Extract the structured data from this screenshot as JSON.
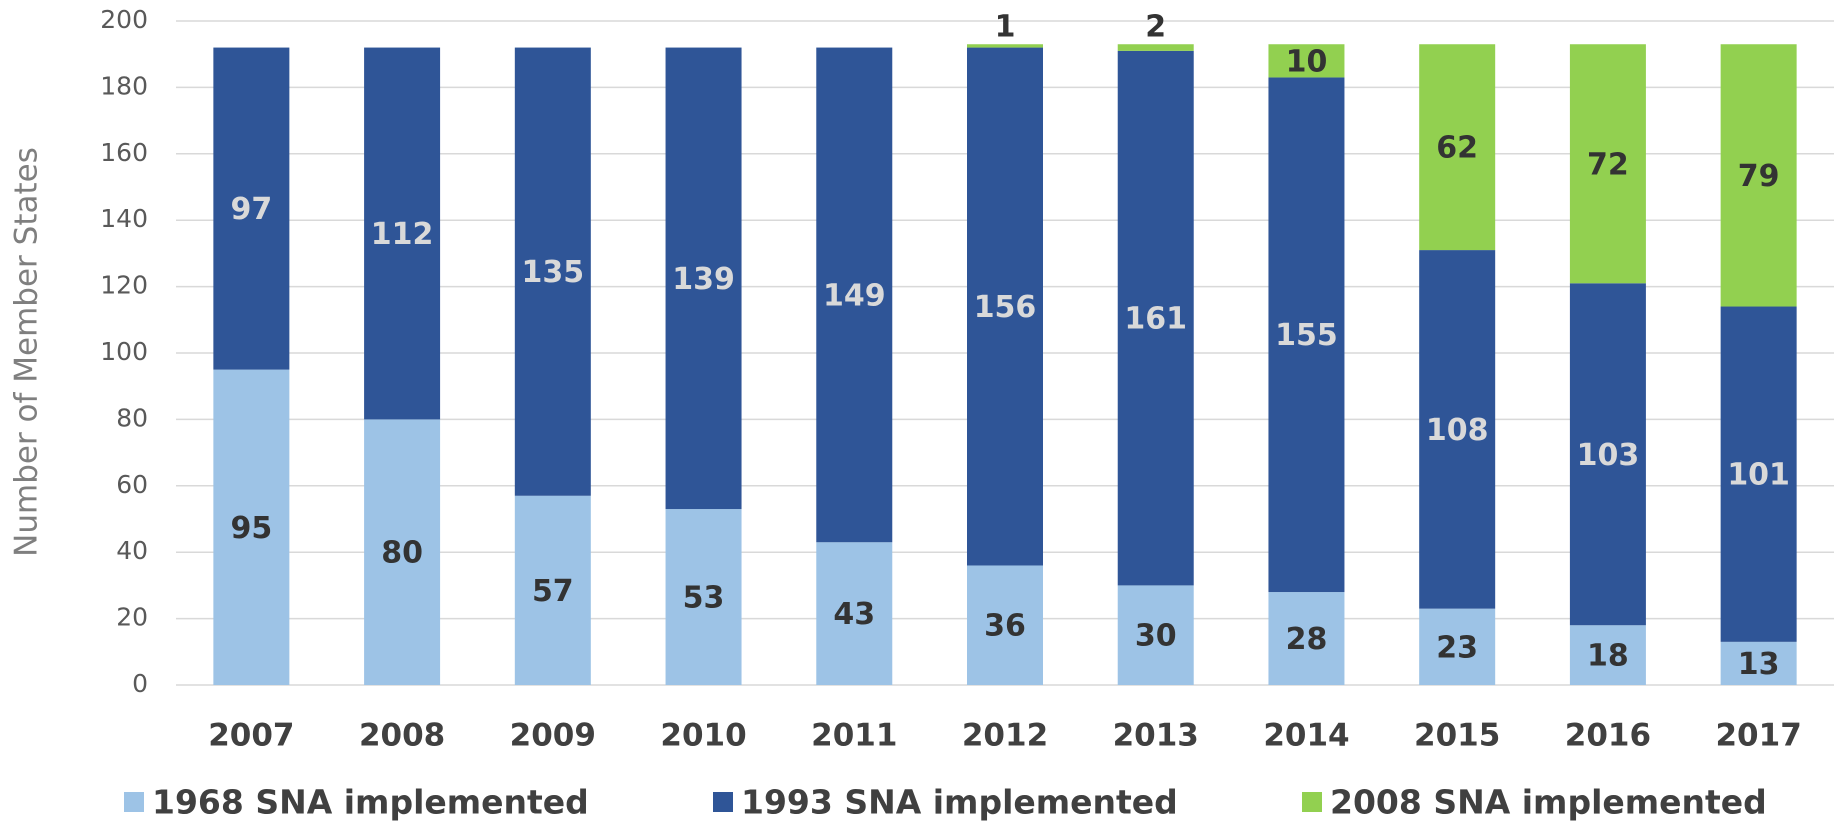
{
  "chart_data": {
    "type": "stacked_bar",
    "y_label": "Number of Member States",
    "categories": [
      "2007",
      "2008",
      "2009",
      "2010",
      "2011",
      "2012",
      "2013",
      "2014",
      "2015",
      "2016",
      "2017"
    ],
    "series": [
      {
        "name": "1968 SNA implemented",
        "color": "#9dc3e6",
        "values": [
          95,
          80,
          57,
          53,
          43,
          36,
          30,
          28,
          23,
          18,
          13
        ]
      },
      {
        "name": "1993 SNA implemented",
        "color": "#2f5597",
        "values": [
          97,
          112,
          135,
          139,
          149,
          156,
          161,
          155,
          108,
          103,
          101
        ]
      },
      {
        "name": "2008 SNA implemented",
        "color": "#92d050",
        "values": [
          0,
          0,
          0,
          0,
          0,
          1,
          2,
          10,
          62,
          72,
          79
        ]
      }
    ],
    "ylim": [
      0,
      200
    ],
    "yticks": [
      0,
      20,
      40,
      60,
      80,
      100,
      120,
      140,
      160,
      180,
      200
    ],
    "grid": true
  }
}
